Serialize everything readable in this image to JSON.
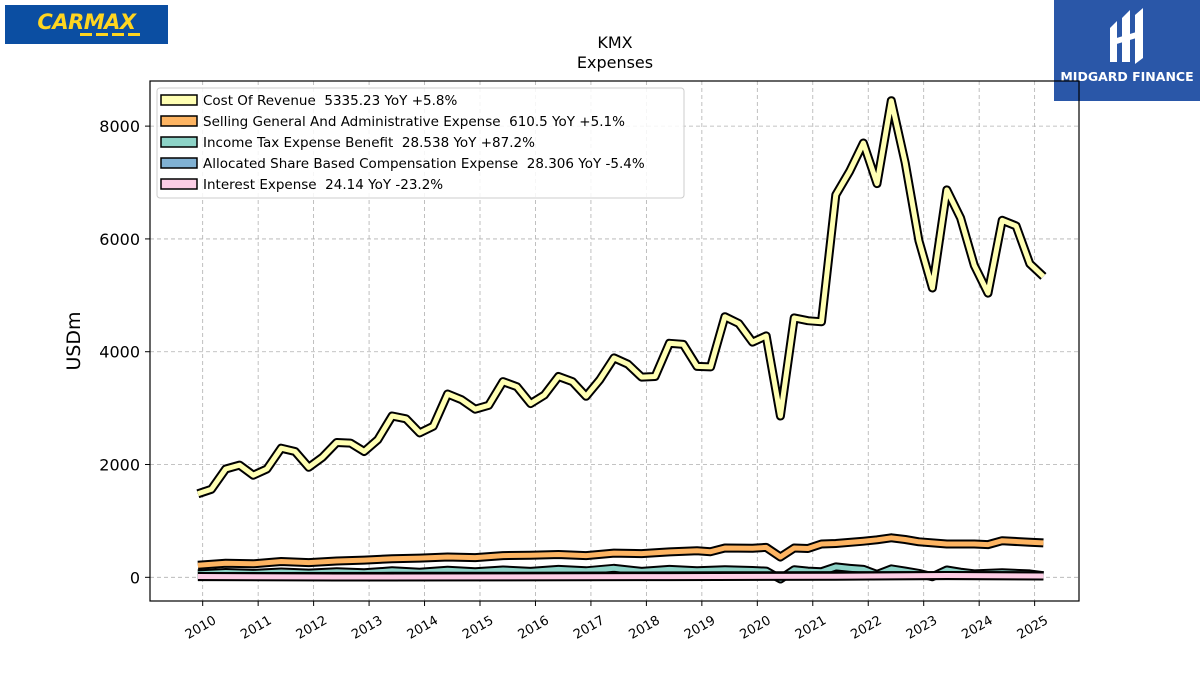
{
  "logos": {
    "left_brand": "CARMAX",
    "right_brand": "MIDGARD FINANCE"
  },
  "chart_data": {
    "type": "line",
    "title": "KMX",
    "subtitle": "Expenses",
    "ylabel": "USDm",
    "xlabel": "",
    "ylim": [
      -420,
      8800
    ],
    "xlim": [
      2009.05,
      2025.8
    ],
    "yticks": [
      0,
      2000,
      4000,
      6000,
      8000
    ],
    "xticks": [
      "2010",
      "2011",
      "2012",
      "2013",
      "2014",
      "2015",
      "2016",
      "2017",
      "2018",
      "2019",
      "2020",
      "2021",
      "2022",
      "2023",
      "2024",
      "2025"
    ],
    "grid": true,
    "legend_position": "top-left",
    "series": [
      {
        "name": "Cost Of Revenue",
        "legend": "Cost Of Revenue  5335.23 YoY +5.8%",
        "color": "#ffffb3",
        "x": [
          "2009-11-30",
          "2010-02-28",
          "2010-05-31",
          "2010-08-31",
          "2010-11-30",
          "2011-02-28",
          "2011-05-31",
          "2011-08-31",
          "2011-11-30",
          "2012-02-29",
          "2012-05-31",
          "2012-08-31",
          "2012-11-30",
          "2013-02-28",
          "2013-05-31",
          "2013-08-31",
          "2013-11-30",
          "2014-02-28",
          "2014-05-31",
          "2014-08-31",
          "2014-11-30",
          "2015-02-28",
          "2015-05-31",
          "2015-08-31",
          "2015-11-30",
          "2016-02-29",
          "2016-05-31",
          "2016-08-31",
          "2016-11-30",
          "2017-02-28",
          "2017-05-31",
          "2017-08-31",
          "2017-11-30",
          "2018-02-28",
          "2018-05-31",
          "2018-08-31",
          "2018-11-30",
          "2019-02-28",
          "2019-05-31",
          "2019-08-31",
          "2019-11-30",
          "2020-02-29",
          "2020-05-31",
          "2020-08-31",
          "2020-11-30",
          "2021-02-28",
          "2021-05-31",
          "2021-08-31",
          "2021-11-30",
          "2022-02-28",
          "2022-05-31",
          "2022-08-31",
          "2022-11-30",
          "2023-02-28",
          "2023-05-31",
          "2023-08-31",
          "2023-11-30",
          "2024-02-29",
          "2024-05-31",
          "2024-08-31",
          "2024-11-30",
          "2025-02-28"
        ],
        "values": [
          1480,
          1560,
          1920,
          1990,
          1810,
          1920,
          2290,
          2230,
          1950,
          2130,
          2390,
          2380,
          2230,
          2440,
          2860,
          2810,
          2560,
          2680,
          3250,
          3150,
          2980,
          3050,
          3470,
          3380,
          3080,
          3230,
          3560,
          3470,
          3210,
          3500,
          3890,
          3780,
          3550,
          3560,
          4150,
          4130,
          3740,
          3730,
          4620,
          4500,
          4170,
          4280,
          2860,
          4600,
          4550,
          4530,
          6780,
          7200,
          7700,
          6980,
          8450,
          7350,
          5970,
          5130,
          6870,
          6370,
          5530,
          5040,
          6330,
          6230,
          5560,
          5335.23
        ]
      },
      {
        "name": "Selling General And Administrative Expense",
        "legend": "Selling General And Administrative Expense  610.5 YoY +5.1%",
        "color": "#fdb462",
        "x": [
          "2009-11-30",
          "2010-05-31",
          "2010-11-30",
          "2011-05-31",
          "2011-11-30",
          "2012-05-31",
          "2012-11-30",
          "2013-05-31",
          "2013-11-30",
          "2014-05-31",
          "2014-11-30",
          "2015-05-31",
          "2015-11-30",
          "2016-05-31",
          "2016-11-30",
          "2017-05-31",
          "2017-11-30",
          "2018-05-31",
          "2018-11-30",
          "2019-02-28",
          "2019-05-31",
          "2019-11-30",
          "2020-02-29",
          "2020-05-31",
          "2020-08-31",
          "2020-11-30",
          "2021-02-28",
          "2021-05-31",
          "2021-11-30",
          "2022-02-28",
          "2022-05-31",
          "2022-08-31",
          "2022-11-30",
          "2023-05-31",
          "2023-11-30",
          "2024-02-29",
          "2024-05-31",
          "2024-11-30",
          "2025-02-28"
        ],
        "values": [
          215,
          250,
          240,
          280,
          260,
          290,
          305,
          330,
          340,
          360,
          350,
          385,
          390,
          405,
          385,
          430,
          420,
          450,
          470,
          455,
          520,
          515,
          530,
          360,
          520,
          510,
          590,
          600,
          640,
          665,
          700,
          670,
          630,
          590,
          590,
          580,
          650,
          620,
          610.5
        ]
      },
      {
        "name": "Income Tax Expense Benefit",
        "legend": "Income Tax Expense Benefit  28.538 YoY +87.2%",
        "color": "#8dd3c7",
        "x": [
          "2009-11-30",
          "2010-05-31",
          "2010-11-30",
          "2011-05-31",
          "2011-11-30",
          "2012-05-31",
          "2012-11-30",
          "2013-05-31",
          "2013-11-30",
          "2014-05-31",
          "2014-11-30",
          "2015-05-31",
          "2015-11-30",
          "2016-05-31",
          "2016-11-30",
          "2017-05-31",
          "2017-11-30",
          "2018-05-31",
          "2018-11-30",
          "2019-05-31",
          "2019-11-30",
          "2020-02-29",
          "2020-05-31",
          "2020-08-31",
          "2020-11-30",
          "2021-02-28",
          "2021-05-31",
          "2021-08-31",
          "2021-11-30",
          "2022-02-28",
          "2022-05-31",
          "2022-08-31",
          "2022-11-30",
          "2023-02-28",
          "2023-05-31",
          "2023-08-31",
          "2023-11-30",
          "2024-05-31",
          "2024-11-30",
          "2025-02-28"
        ],
        "values": [
          60,
          85,
          70,
          95,
          75,
          100,
          80,
          115,
          90,
          125,
          100,
          130,
          105,
          140,
          115,
          160,
          105,
          140,
          115,
          135,
          120,
          110,
          -30,
          135,
          110,
          100,
          185,
          160,
          140,
          50,
          150,
          110,
          70,
          10,
          130,
          90,
          60,
          80,
          60,
          28.538
        ]
      },
      {
        "name": "Allocated Share Based Compensation Expense",
        "legend": "Allocated Share Based Compensation Expense  28.306 YoY -5.4%",
        "color": "#80b1d3",
        "x": [
          "2009-11-30",
          "2011-05-31",
          "2013-05-31",
          "2015-05-31",
          "2017-05-31",
          "2019-05-31",
          "2021-05-31",
          "2023-05-31",
          "2025-02-28"
        ],
        "values": [
          12,
          15,
          18,
          20,
          24,
          27,
          30,
          30,
          28.306
        ]
      },
      {
        "name": "Interest Expense",
        "legend": "Interest Expense  24.14 YoY -23.2%",
        "color": "#fccde5",
        "x": [
          "2009-11-30",
          "2012-05-31",
          "2015-05-31",
          "2018-05-31",
          "2021-05-31",
          "2023-05-31",
          "2025-02-28"
        ],
        "values": [
          14,
          6,
          7,
          12,
          19,
          33,
          24.14
        ]
      }
    ]
  }
}
